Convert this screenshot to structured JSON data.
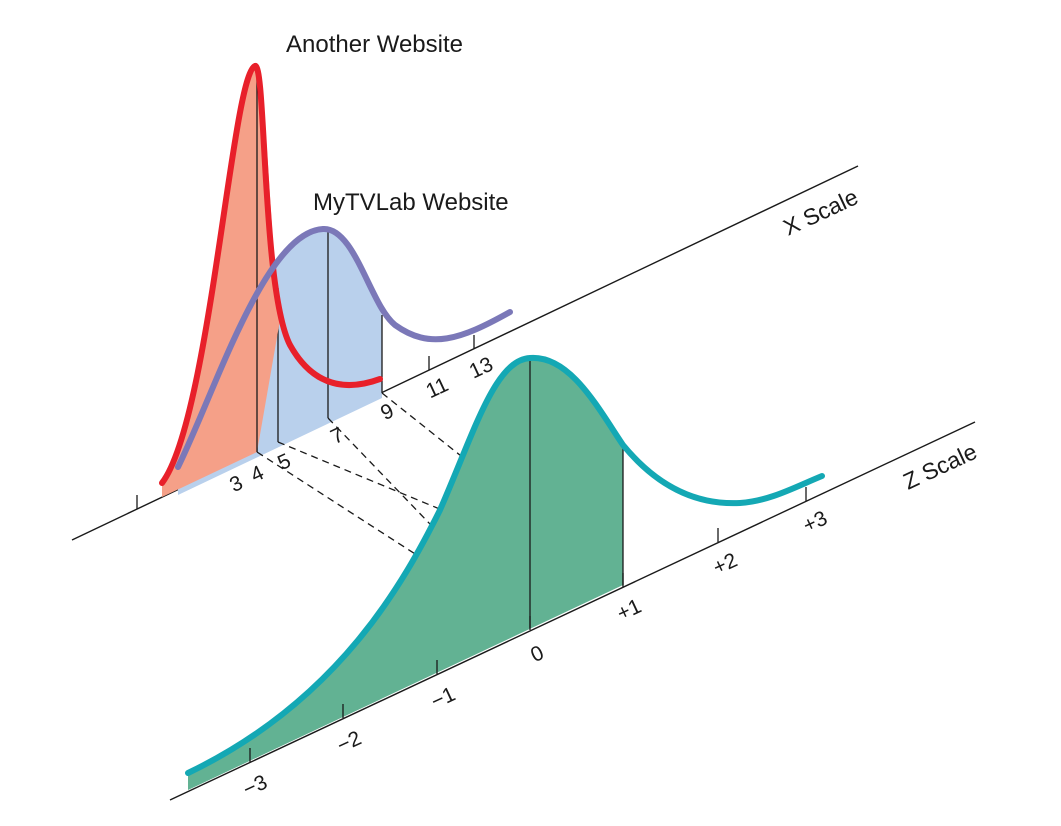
{
  "labels": {
    "another_website": "Another Website",
    "mytvlab_website": "MyTVLab Website",
    "x_scale": "X Scale",
    "z_scale": "Z Scale"
  },
  "x_axis": {
    "tick_labels": [
      "3",
      "4",
      "5",
      "7",
      "9",
      "11",
      "13"
    ]
  },
  "z_axis": {
    "tick_labels": [
      "−3",
      "−2",
      "−1",
      "0",
      "+1",
      "+2",
      "+3"
    ]
  },
  "colors": {
    "another_stroke": "#e8202a",
    "another_fill": "#f5a088",
    "mytvlab_stroke": "#7b78b8",
    "mytvlab_fill": "#b9d0ec",
    "standard_stroke": "#14a8b4",
    "standard_fill": "#62b293",
    "ink": "#1a1a1a"
  },
  "icons": {
    "curve_type": "skewed-distribution-curve"
  }
}
